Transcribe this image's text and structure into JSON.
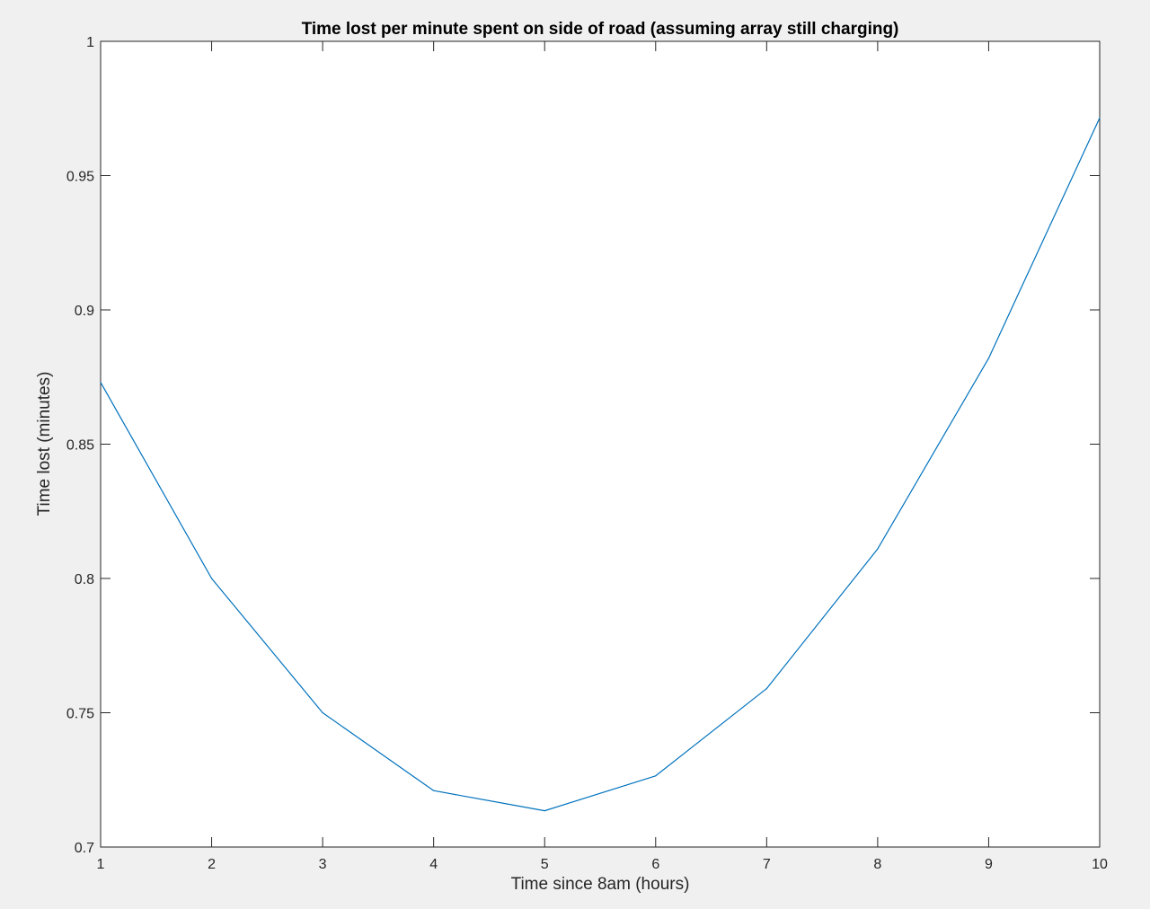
{
  "chart_data": {
    "type": "line",
    "title": "Time lost per minute spent on side of road (assuming array still charging)",
    "xlabel": "Time since 8am (hours)",
    "ylabel": "Time lost (minutes)",
    "xlim": [
      1,
      10
    ],
    "ylim": [
      0.7,
      1
    ],
    "xticks": [
      1,
      2,
      3,
      4,
      5,
      6,
      7,
      8,
      9,
      10
    ],
    "xtick_labels": [
      "1",
      "2",
      "3",
      "4",
      "5",
      "6",
      "7",
      "8",
      "9",
      "10"
    ],
    "yticks": [
      0.7,
      0.75,
      0.8,
      0.85,
      0.9,
      0.95,
      1
    ],
    "ytick_labels": [
      "0.7",
      "0.75",
      "0.8",
      "0.85",
      "0.9",
      "0.95",
      "1"
    ],
    "grid": false,
    "series": [
      {
        "x": [
          1,
          2,
          3,
          4,
          5,
          6,
          7,
          8,
          9,
          10
        ],
        "values": [
          0.873,
          0.8,
          0.75,
          0.721,
          0.7135,
          0.7265,
          0.759,
          0.811,
          0.882,
          0.9715
        ],
        "color": "#0072bd"
      }
    ]
  }
}
